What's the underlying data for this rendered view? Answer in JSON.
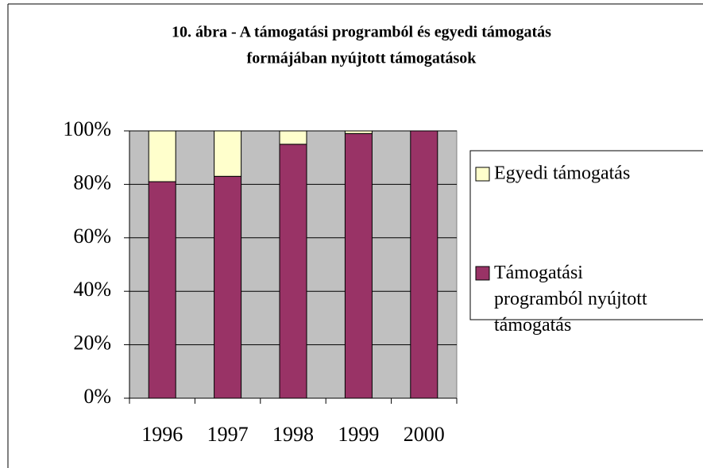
{
  "chart_data": {
    "type": "bar",
    "stacked": true,
    "title": [
      "10. ábra - A támogatási programból és egyedi támogatás",
      "formájában nyújtott támogatások"
    ],
    "categories": [
      "1996",
      "1997",
      "1998",
      "1999",
      "2000"
    ],
    "series": [
      {
        "name": "Támogatási programból nyújtott támogatás",
        "color": "#993366",
        "values": [
          81,
          83,
          95,
          99,
          100
        ]
      },
      {
        "name": "Egyedi támogatás",
        "color": "#ffffcc",
        "values": [
          19,
          17,
          5,
          1,
          0
        ]
      }
    ],
    "ylim": [
      0,
      100
    ],
    "yticks": [
      {
        "value": 0,
        "label": "0%"
      },
      {
        "value": 20,
        "label": "20%"
      },
      {
        "value": 40,
        "label": "40%"
      },
      {
        "value": 60,
        "label": "60%"
      },
      {
        "value": 80,
        "label": "80%"
      },
      {
        "value": 100,
        "label": "100%"
      }
    ],
    "grid": true,
    "plot_background": "#c0c0c0"
  }
}
